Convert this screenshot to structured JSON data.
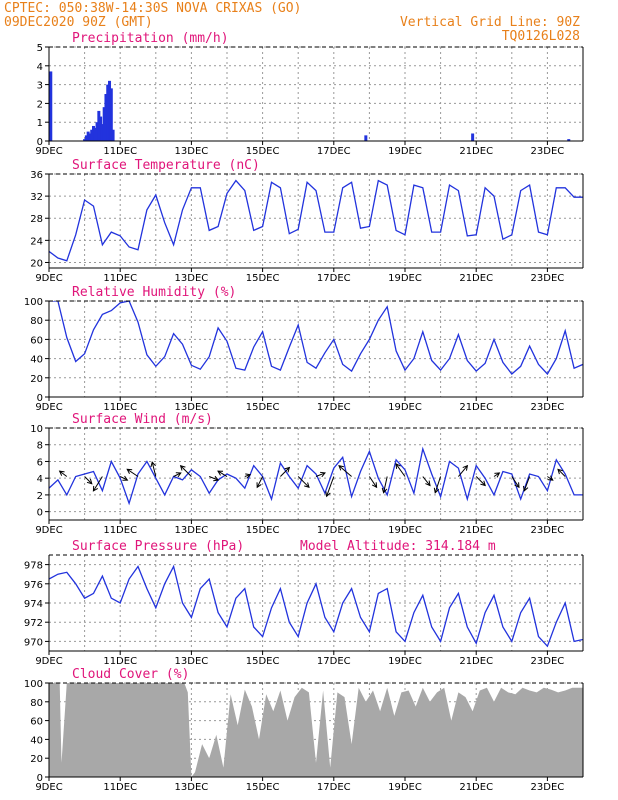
{
  "header": {
    "line1": "CPTEC:   050:38W-14:30S  NOVA CRIXAS (GO)",
    "line2": "09DEC2020 90Z (GMT)",
    "right1": "Vertical Grid Line: 90Z",
    "right2": "TQ0126L028"
  },
  "colors": {
    "header": "#e8801a",
    "title": "#e0157a",
    "line": "#2233dd",
    "cloud": "#a8a8a8",
    "grid": "#999999"
  },
  "x_axis": {
    "labels": [
      "9DEC",
      "11DEC",
      "13DEC",
      "15DEC",
      "17DEC",
      "19DEC",
      "21DEC",
      "23DEC"
    ],
    "label_days": [
      9,
      11,
      13,
      15,
      17,
      19,
      21,
      23
    ],
    "start_day": 9,
    "end_day": 24
  },
  "chart_data": [
    {
      "type": "bar",
      "title": "Precipitation (mm/h)",
      "ylim": [
        0,
        5
      ],
      "yticks": [
        0,
        1,
        2,
        3,
        4,
        5
      ],
      "x": [
        9.05,
        10.0,
        10.05,
        10.1,
        10.15,
        10.2,
        10.25,
        10.3,
        10.35,
        10.4,
        10.45,
        10.5,
        10.55,
        10.6,
        10.65,
        10.7,
        10.75,
        10.8,
        17.9,
        20.9,
        23.6
      ],
      "values": [
        3.7,
        0.1,
        0.3,
        0.5,
        0.4,
        0.6,
        0.8,
        0.7,
        1.0,
        1.6,
        1.3,
        0.9,
        1.8,
        2.5,
        3.0,
        3.2,
        2.8,
        0.6,
        0.3,
        0.4,
        0.1
      ]
    },
    {
      "type": "line",
      "title": "Surface Temperature (nC)",
      "ylim": [
        19,
        36
      ],
      "yticks": [
        20,
        24,
        28,
        32,
        36
      ],
      "x": [
        9.0,
        9.25,
        9.5,
        9.75,
        10.0,
        10.25,
        10.5,
        10.75,
        11.0,
        11.25,
        11.5,
        11.75,
        12.0,
        12.25,
        12.5,
        12.75,
        13.0,
        13.25,
        13.5,
        13.75,
        14.0,
        14.25,
        14.5,
        14.75,
        15.0,
        15.25,
        15.5,
        15.75,
        16.0,
        16.25,
        16.5,
        16.75,
        17.0,
        17.25,
        17.5,
        17.75,
        18.0,
        18.25,
        18.5,
        18.75,
        19.0,
        19.25,
        19.5,
        19.75,
        20.0,
        20.25,
        20.5,
        20.75,
        21.0,
        21.25,
        21.5,
        21.75,
        22.0,
        22.25,
        22.5,
        22.75,
        23.0,
        23.25,
        23.5,
        23.75,
        24.0
      ],
      "values": [
        22.0,
        20.8,
        20.3,
        25.0,
        31.3,
        30.2,
        23.2,
        25.5,
        24.8,
        22.8,
        22.3,
        29.5,
        32.2,
        27.2,
        23.2,
        29.5,
        33.5,
        33.5,
        25.8,
        26.5,
        32.5,
        34.8,
        33.0,
        25.8,
        26.5,
        34.5,
        33.5,
        25.2,
        26.0,
        34.5,
        33.0,
        25.5,
        25.5,
        33.5,
        34.5,
        26.2,
        26.5,
        34.8,
        34.0,
        25.8,
        25.0,
        34.0,
        33.5,
        25.5,
        25.5,
        34.0,
        33.0,
        24.8,
        25.0,
        33.5,
        32.0,
        24.2,
        25.0,
        33.0,
        34.0,
        25.5,
        25.0,
        33.5,
        33.5,
        31.8,
        31.8
      ]
    },
    {
      "type": "line",
      "title": "Relative Humidity (%)",
      "ylim": [
        0,
        100
      ],
      "yticks": [
        0,
        20,
        40,
        60,
        80,
        100
      ],
      "x": [
        9.0,
        9.25,
        9.5,
        9.75,
        10.0,
        10.25,
        10.5,
        10.75,
        11.0,
        11.25,
        11.5,
        11.75,
        12.0,
        12.25,
        12.5,
        12.75,
        13.0,
        13.25,
        13.5,
        13.75,
        14.0,
        14.25,
        14.5,
        14.75,
        15.0,
        15.25,
        15.5,
        15.75,
        16.0,
        16.25,
        16.5,
        16.75,
        17.0,
        17.25,
        17.5,
        17.75,
        18.0,
        18.25,
        18.5,
        18.75,
        19.0,
        19.25,
        19.5,
        19.75,
        20.0,
        20.25,
        20.5,
        20.75,
        21.0,
        21.25,
        21.5,
        21.75,
        22.0,
        22.25,
        22.5,
        22.75,
        23.0,
        23.25,
        23.5,
        23.75,
        24.0
      ],
      "values": [
        100.0,
        100.0,
        62.0,
        37.0,
        45.0,
        70.0,
        86.0,
        90.0,
        98.0,
        100.0,
        78.0,
        44.0,
        32.0,
        42.0,
        66.0,
        55.0,
        33.0,
        29.0,
        42.0,
        72.0,
        58.0,
        30.0,
        28.0,
        52.0,
        68.0,
        32.0,
        28.0,
        52.0,
        75.0,
        36.0,
        30.0,
        46.0,
        60.0,
        34.0,
        27.0,
        45.0,
        60.0,
        80.0,
        94.0,
        48.0,
        28.0,
        40.0,
        68.0,
        38.0,
        28.0,
        40.0,
        65.0,
        38.0,
        27.0,
        35.0,
        60.0,
        36.0,
        24.0,
        32.0,
        53.0,
        34.0,
        24.0,
        40.0,
        69.0,
        30.0,
        34.0
      ]
    },
    {
      "type": "line",
      "title": "Surface Wind (m/s)",
      "ylim": [
        -1,
        10
      ],
      "yticks": [
        0,
        2,
        4,
        6,
        8,
        10
      ],
      "x": [
        9.0,
        9.25,
        9.5,
        9.75,
        10.0,
        10.25,
        10.5,
        10.75,
        11.0,
        11.25,
        11.5,
        11.75,
        12.0,
        12.25,
        12.5,
        12.75,
        13.0,
        13.25,
        13.5,
        13.75,
        14.0,
        14.25,
        14.5,
        14.75,
        15.0,
        15.25,
        15.5,
        15.75,
        16.0,
        16.25,
        16.5,
        16.75,
        17.0,
        17.25,
        17.5,
        17.75,
        18.0,
        18.25,
        18.5,
        18.75,
        19.0,
        19.25,
        19.5,
        19.75,
        20.0,
        20.25,
        20.5,
        20.75,
        21.0,
        21.25,
        21.5,
        21.75,
        22.0,
        22.25,
        22.5,
        22.75,
        23.0,
        23.25,
        23.5,
        23.75,
        24.0
      ],
      "values": [
        2.8,
        3.8,
        2.0,
        4.2,
        4.5,
        4.8,
        2.5,
        6.0,
        4.0,
        1.0,
        4.5,
        6.0,
        4.0,
        2.0,
        4.2,
        3.8,
        5.0,
        4.2,
        2.2,
        3.8,
        4.5,
        4.0,
        2.8,
        5.5,
        4.2,
        1.5,
        5.8,
        4.2,
        2.8,
        5.5,
        4.5,
        2.2,
        5.2,
        6.5,
        1.8,
        4.8,
        7.2,
        4.0,
        2.0,
        6.2,
        5.0,
        2.2,
        7.5,
        4.5,
        1.8,
        6.0,
        5.2,
        1.5,
        5.5,
        4.0,
        2.0,
        4.8,
        4.5,
        1.5,
        4.5,
        4.2,
        2.5,
        6.2,
        4.5,
        2.0,
        2.0
      ],
      "arrows": [
        {
          "x": 9.5,
          "u": -0.4,
          "v": 0.3
        },
        {
          "x": 10.0,
          "u": 0.4,
          "v": -0.4
        },
        {
          "x": 10.5,
          "u": -0.5,
          "v": -0.8
        },
        {
          "x": 11.0,
          "u": 0.4,
          "v": -0.2
        },
        {
          "x": 11.5,
          "u": -0.6,
          "v": 0.4
        },
        {
          "x": 12.0,
          "u": -0.2,
          "v": 0.8
        },
        {
          "x": 12.5,
          "u": 0.4,
          "v": 0.2
        },
        {
          "x": 13.0,
          "u": -0.6,
          "v": 0.6
        },
        {
          "x": 13.5,
          "u": 0.5,
          "v": -0.2
        },
        {
          "x": 14.0,
          "u": -0.5,
          "v": 0.3
        },
        {
          "x": 14.5,
          "u": 0.3,
          "v": 0.1
        },
        {
          "x": 15.0,
          "u": -0.3,
          "v": -0.6
        },
        {
          "x": 15.5,
          "u": 0.5,
          "v": 0.5
        },
        {
          "x": 16.0,
          "u": 0.6,
          "v": -0.6
        },
        {
          "x": 16.5,
          "u": 0.5,
          "v": 0.2
        },
        {
          "x": 17.0,
          "u": -0.4,
          "v": -1.1
        },
        {
          "x": 17.5,
          "u": -0.7,
          "v": 0.6
        },
        {
          "x": 18.0,
          "u": 0.4,
          "v": -0.6
        },
        {
          "x": 18.5,
          "u": -0.2,
          "v": -0.9
        },
        {
          "x": 19.0,
          "u": -0.5,
          "v": 0.7
        },
        {
          "x": 19.5,
          "u": 0.4,
          "v": -0.5
        },
        {
          "x": 20.0,
          "u": -0.3,
          "v": -0.9
        },
        {
          "x": 20.5,
          "u": 0.5,
          "v": 0.6
        },
        {
          "x": 21.0,
          "u": 0.5,
          "v": -0.5
        },
        {
          "x": 21.5,
          "u": 0.3,
          "v": 0.2
        },
        {
          "x": 22.0,
          "u": 0.4,
          "v": -0.6
        },
        {
          "x": 22.5,
          "u": -0.3,
          "v": -0.8
        },
        {
          "x": 23.0,
          "u": 0.3,
          "v": -0.2
        },
        {
          "x": 23.5,
          "u": -0.4,
          "v": 0.4
        }
      ]
    },
    {
      "type": "line",
      "title": "Surface Pressure (hPa)",
      "annotation": "Model Altitude: 314.184 m",
      "ylim": [
        969,
        979
      ],
      "yticks": [
        970,
        972,
        974,
        976,
        978
      ],
      "x": [
        9.0,
        9.25,
        9.5,
        9.75,
        10.0,
        10.25,
        10.5,
        10.75,
        11.0,
        11.25,
        11.5,
        11.75,
        12.0,
        12.25,
        12.5,
        12.75,
        13.0,
        13.25,
        13.5,
        13.75,
        14.0,
        14.25,
        14.5,
        14.75,
        15.0,
        15.25,
        15.5,
        15.75,
        16.0,
        16.25,
        16.5,
        16.75,
        17.0,
        17.25,
        17.5,
        17.75,
        18.0,
        18.25,
        18.5,
        18.75,
        19.0,
        19.25,
        19.5,
        19.75,
        20.0,
        20.25,
        20.5,
        20.75,
        21.0,
        21.25,
        21.5,
        21.75,
        22.0,
        22.25,
        22.5,
        22.75,
        23.0,
        23.25,
        23.5,
        23.75,
        24.0
      ],
      "values": [
        976.5,
        977.0,
        977.2,
        976.0,
        974.5,
        975.0,
        976.8,
        974.5,
        974.0,
        976.5,
        977.8,
        975.5,
        973.5,
        976.0,
        977.8,
        974.0,
        972.5,
        975.5,
        976.5,
        973.0,
        971.5,
        974.5,
        975.5,
        971.5,
        970.5,
        973.5,
        975.5,
        972.0,
        970.5,
        974.0,
        976.0,
        972.5,
        971.0,
        974.0,
        975.5,
        972.5,
        971.0,
        975.0,
        975.5,
        971.0,
        970.0,
        973.0,
        974.8,
        971.5,
        970.0,
        973.5,
        975.0,
        971.5,
        969.8,
        973.0,
        974.8,
        971.5,
        970.0,
        973.0,
        974.5,
        970.5,
        969.5,
        972.0,
        974.0,
        970.0,
        970.2
      ]
    },
    {
      "type": "area",
      "title": "Cloud Cover (%)",
      "ylim": [
        0,
        100
      ],
      "yticks": [
        0,
        20,
        40,
        60,
        80,
        100
      ],
      "x": [
        9.0,
        9.3,
        9.35,
        9.5,
        9.7,
        10.0,
        10.3,
        10.6,
        11.0,
        11.5,
        12.0,
        12.5,
        12.8,
        12.9,
        13.0,
        13.1,
        13.3,
        13.5,
        13.7,
        13.9,
        14.1,
        14.3,
        14.5,
        14.7,
        14.9,
        15.1,
        15.3,
        15.5,
        15.7,
        15.9,
        16.1,
        16.3,
        16.5,
        16.7,
        16.9,
        17.1,
        17.3,
        17.5,
        17.7,
        17.9,
        18.1,
        18.3,
        18.5,
        18.7,
        18.9,
        19.1,
        19.3,
        19.5,
        19.7,
        19.9,
        20.1,
        20.3,
        20.5,
        20.7,
        20.9,
        21.1,
        21.3,
        21.5,
        21.7,
        21.9,
        22.1,
        22.3,
        22.5,
        22.7,
        22.9,
        23.1,
        23.3,
        23.5,
        23.7,
        24.0
      ],
      "values": [
        100,
        100,
        15,
        100,
        100,
        100,
        100,
        100,
        100,
        100,
        100,
        100,
        100,
        90,
        0,
        5,
        35,
        20,
        45,
        10,
        88,
        55,
        93,
        75,
        40,
        88,
        70,
        92,
        60,
        85,
        95,
        90,
        15,
        92,
        10,
        90,
        85,
        35,
        95,
        80,
        92,
        70,
        95,
        65,
        90,
        92,
        75,
        95,
        80,
        90,
        95,
        60,
        90,
        85,
        70,
        92,
        95,
        80,
        95,
        90,
        88,
        95,
        92,
        90,
        95,
        93,
        90,
        92,
        95,
        95
      ]
    }
  ]
}
